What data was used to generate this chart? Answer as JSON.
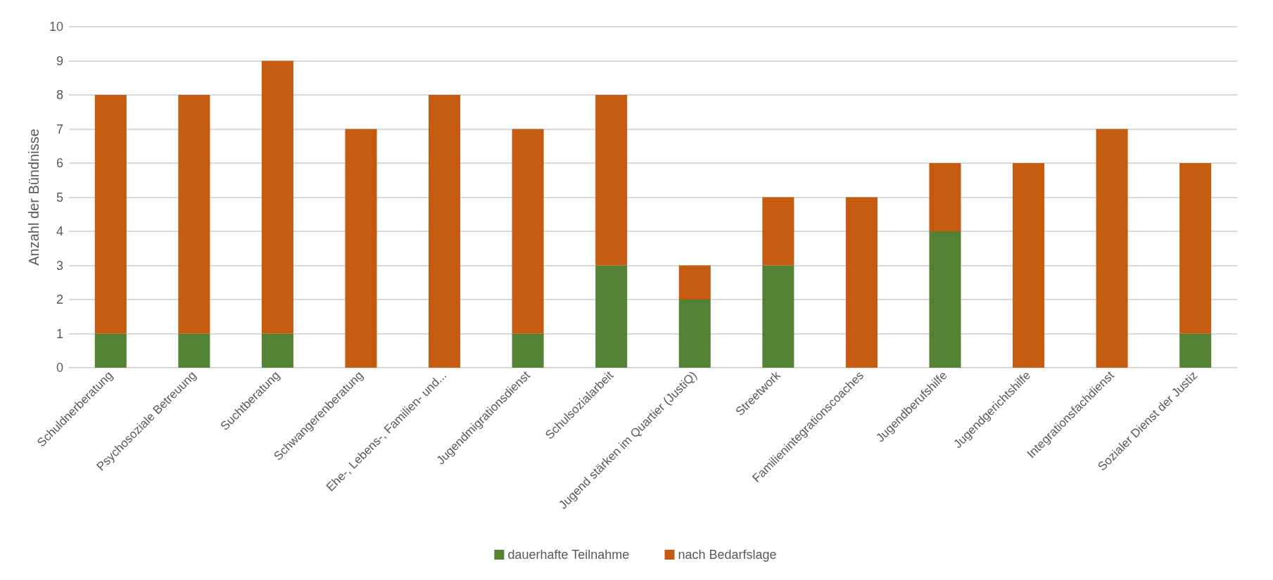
{
  "chart_data": {
    "type": "bar",
    "stacked": true,
    "ylabel": "Anzahl der Bündnisse",
    "categories": [
      "Schuldnerberatung",
      "Psychosoziale Betreuung",
      "Suchtberatung",
      "Schwangerenberatung",
      "Ehe-, Lebens-, Familien- und...",
      "Jugendmigrationsdienst",
      "Schulsozialarbeit",
      "Jugend stärken im Quartier (JustiQ)",
      "Streetwork",
      "Familienintegrationscoaches",
      "Jugendberufshilfe",
      "Jugendgerichtshilfe",
      "Integrationsfachdienst",
      "Sozialer Dienst der Justiz"
    ],
    "series": [
      {
        "name": "dauerhafte Teilnahme",
        "color": "#548235",
        "values": [
          1,
          1,
          1,
          0,
          0,
          1,
          3,
          2,
          3,
          0,
          4,
          0,
          0,
          1
        ]
      },
      {
        "name": "nach Bedarfslage",
        "color": "#c55a11",
        "values": [
          7,
          7,
          8,
          7,
          8,
          6,
          5,
          1,
          2,
          5,
          2,
          6,
          7,
          5
        ]
      }
    ],
    "ylim": [
      0,
      10
    ],
    "yticks": [
      0,
      1,
      2,
      3,
      4,
      5,
      6,
      7,
      8,
      9,
      10
    ],
    "grid": "y",
    "legend": "bottom"
  }
}
